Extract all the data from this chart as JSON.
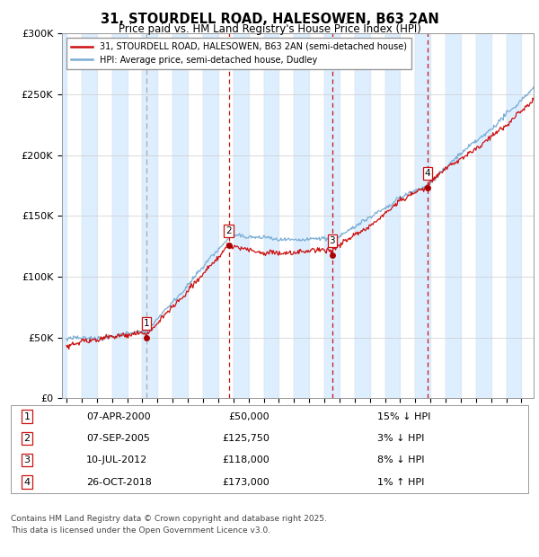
{
  "title_line1": "31, STOURDELL ROAD, HALESOWEN, B63 2AN",
  "title_line2": "Price paid vs. HM Land Registry's House Price Index (HPI)",
  "ylabel_ticks": [
    "£0",
    "£50K",
    "£100K",
    "£150K",
    "£200K",
    "£250K",
    "£300K"
  ],
  "ytick_vals": [
    0,
    50000,
    100000,
    150000,
    200000,
    250000,
    300000
  ],
  "ylim": [
    0,
    300000
  ],
  "xlim_start": 1994.7,
  "xlim_end": 2025.8,
  "hpi_color": "#7aadd4",
  "price_color": "#cc1111",
  "sale_marker_color": "#aa0000",
  "vline_color_dashed_gray": "#aaaaaa",
  "vline_color_red": "#cc1111",
  "background_color": "#ffffff",
  "alt_band_color": "#ddeeff",
  "plot_bg_color": "#ffffff",
  "legend_label_price": "31, STOURDELL ROAD, HALESOWEN, B63 2AN (semi-detached house)",
  "legend_label_hpi": "HPI: Average price, semi-detached house, Dudley",
  "sales": [
    {
      "num": 1,
      "date": "07-APR-2000",
      "year": 2000.27,
      "price": 50000,
      "vline_style": "gray_dashed"
    },
    {
      "num": 2,
      "date": "07-SEP-2005",
      "year": 2005.69,
      "price": 125750,
      "vline_style": "red_dashed"
    },
    {
      "num": 3,
      "date": "10-JUL-2012",
      "year": 2012.52,
      "price": 118000,
      "vline_style": "red_dashed"
    },
    {
      "num": 4,
      "date": "26-OCT-2018",
      "year": 2018.82,
      "price": 173000,
      "vline_style": "red_dashed"
    }
  ],
  "footer_line1": "Contains HM Land Registry data © Crown copyright and database right 2025.",
  "footer_line2": "This data is licensed under the Open Government Licence v3.0.",
  "table_rows": [
    {
      "num": "1",
      "date": "07-APR-2000",
      "price": "£50,000",
      "pct": "15% ↓ HPI"
    },
    {
      "num": "2",
      "date": "07-SEP-2005",
      "price": "£125,750",
      "pct": "3% ↓ HPI"
    },
    {
      "num": "3",
      "date": "10-JUL-2012",
      "price": "£118,000",
      "pct": "8% ↓ HPI"
    },
    {
      "num": "4",
      "date": "26-OCT-2018",
      "price": "£173,000",
      "pct": "1% ↑ HPI"
    }
  ]
}
